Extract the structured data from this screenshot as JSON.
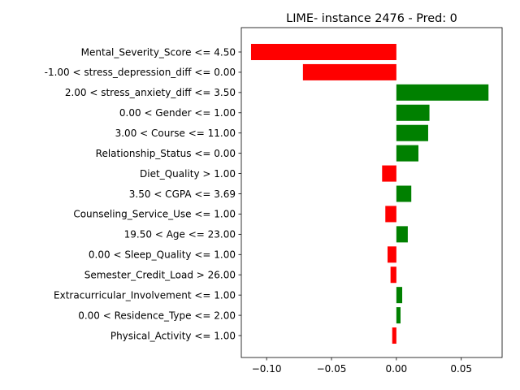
{
  "chart_data": {
    "type": "bar",
    "orientation": "horizontal",
    "title": "LIME- instance 2476 - Pred: 0",
    "xlabel": "",
    "ylabel": "",
    "xlim": [
      -0.1195,
      0.0815
    ],
    "xticks": [
      -0.1,
      -0.05,
      0.0,
      0.05
    ],
    "xtick_labels": [
      "−0.10",
      "−0.05",
      "0.00",
      "0.05"
    ],
    "grid": false,
    "colors": {
      "positive": "#008000",
      "negative": "#ff0000"
    },
    "categories": [
      "Mental_Severity_Score <= 4.50",
      "-1.00 < stress_depression_diff <= 0.00",
      "2.00 < stress_anxiety_diff <= 3.50",
      "0.00 < Gender <= 1.00",
      "3.00 < Course <= 11.00",
      "Relationship_Status <= 0.00",
      "Diet_Quality > 1.00",
      "3.50 < CGPA <= 3.69",
      "Counseling_Service_Use <= 1.00",
      "19.50 < Age <= 23.00",
      "0.00 < Sleep_Quality <= 1.00",
      "Semester_Credit_Load > 26.00",
      "Extracurricular_Involvement <= 1.00",
      "0.00 < Residence_Type <= 2.00",
      "Physical_Activity <= 1.00"
    ],
    "values": [
      -0.112,
      -0.072,
      0.071,
      0.0255,
      0.0245,
      0.017,
      -0.011,
      0.0115,
      -0.0085,
      0.0088,
      -0.0068,
      -0.0045,
      0.0045,
      0.0032,
      -0.0032
    ]
  }
}
